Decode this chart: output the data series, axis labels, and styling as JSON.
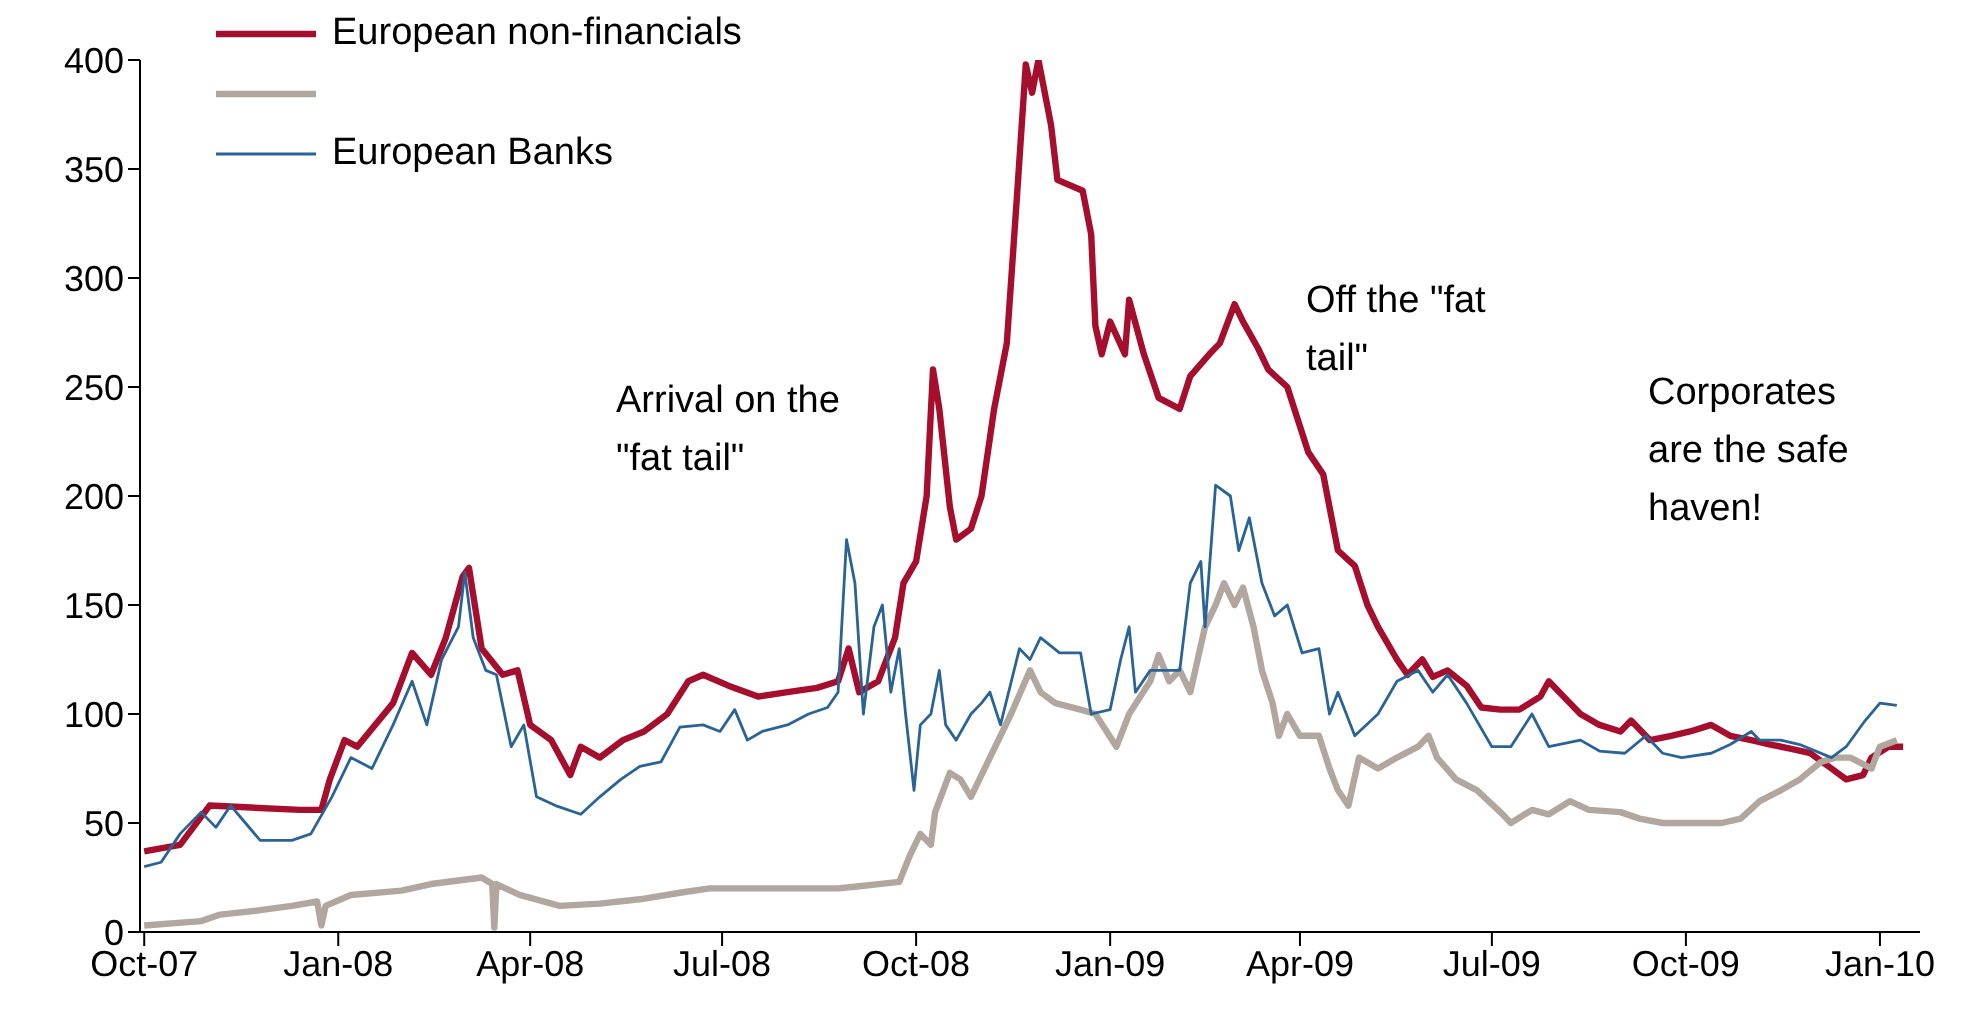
{
  "chart_data": {
    "type": "line",
    "legend": "top left",
    "grid": false,
    "marker": "none",
    "line_style": "solid",
    "xlim": [
      "2007-09-29",
      "2010-01-20"
    ],
    "xticks": [
      {
        "value": "2007-10-01",
        "label": "Oct-07"
      },
      {
        "value": "2008-01-01",
        "label": "Jan-08"
      },
      {
        "value": "2008-04-01",
        "label": "Apr-08"
      },
      {
        "value": "2008-07-01",
        "label": "Jul-08"
      },
      {
        "value": "2008-10-01",
        "label": "Oct-08"
      },
      {
        "value": "2009-01-01",
        "label": "Jan-09"
      },
      {
        "value": "2009-04-01",
        "label": "Apr-09"
      },
      {
        "value": "2009-07-01",
        "label": "Jul-09"
      },
      {
        "value": "2009-10-01",
        "label": "Oct-09"
      },
      {
        "value": "2010-01-01",
        "label": "Jan-10"
      }
    ],
    "ylim": [
      0,
      400
    ],
    "yticks": [
      0,
      50,
      100,
      150,
      200,
      250,
      300,
      350,
      400
    ],
    "annotations": [
      "Arrival on the \"fat tail\"",
      "Off the \"fat tail\"",
      "Corporates are the safe haven!"
    ],
    "series": [
      {
        "name": "European non-financials",
        "color": "#a50f2d",
        "x": [
          "2007-10-01",
          "2007-10-18",
          "2007-11-01",
          "2007-12-14",
          "2007-12-24",
          "2007-12-28",
          "2008-01-04",
          "2008-01-10",
          "2008-01-27",
          "2008-02-05",
          "2008-02-14",
          "2008-02-21",
          "2008-02-29",
          "2008-03-03",
          "2008-03-09",
          "2008-03-19",
          "2008-03-26",
          "2008-04-01",
          "2008-04-11",
          "2008-04-20",
          "2008-04-25",
          "2008-05-04",
          "2008-05-15",
          "2008-05-25",
          "2008-06-05",
          "2008-06-15",
          "2008-06-22",
          "2008-07-04",
          "2008-07-18",
          "2008-08-01",
          "2008-08-15",
          "2008-08-25",
          "2008-08-30",
          "2008-09-04",
          "2008-09-13",
          "2008-09-21",
          "2008-09-25",
          "2008-10-01",
          "2008-10-06",
          "2008-10-09",
          "2008-10-12",
          "2008-10-17",
          "2008-10-20",
          "2008-10-27",
          "2008-11-01",
          "2008-11-07",
          "2008-11-13",
          "2008-11-18",
          "2008-11-22",
          "2008-11-25",
          "2008-11-28",
          "2008-12-04",
          "2008-12-07",
          "2008-12-19",
          "2008-12-23",
          "2008-12-25",
          "2008-12-28",
          "2009-01-01",
          "2009-01-08",
          "2009-01-10",
          "2009-01-17",
          "2009-01-24",
          "2009-02-03",
          "2009-02-08",
          "2009-02-17",
          "2009-02-22",
          "2009-03-01",
          "2009-03-05",
          "2009-03-12",
          "2009-03-17",
          "2009-03-26",
          "2009-04-05",
          "2009-04-12",
          "2009-04-19",
          "2009-04-27",
          "2009-05-03",
          "2009-05-08",
          "2009-05-17",
          "2009-05-22",
          "2009-05-29",
          "2009-06-03",
          "2009-06-10",
          "2009-06-19",
          "2009-06-26",
          "2009-07-05",
          "2009-07-14",
          "2009-07-24",
          "2009-07-28",
          "2009-08-07",
          "2009-08-12",
          "2009-08-21",
          "2009-08-31",
          "2009-09-05",
          "2009-09-14",
          "2009-09-24",
          "2009-10-03",
          "2009-10-13",
          "2009-10-22",
          "2009-11-01",
          "2009-11-10",
          "2009-11-20",
          "2009-11-29",
          "2009-12-09",
          "2009-12-16",
          "2009-12-24",
          "2009-12-28",
          "2010-01-05",
          "2010-01-12"
        ],
        "values": [
          37,
          40,
          58,
          56,
          56,
          70,
          88,
          85,
          105,
          128,
          118,
          135,
          163,
          167,
          130,
          118,
          120,
          95,
          88,
          72,
          85,
          80,
          88,
          92,
          100,
          115,
          118,
          113,
          108,
          110,
          112,
          115,
          130,
          110,
          115,
          135,
          160,
          170,
          200,
          258,
          240,
          195,
          180,
          185,
          200,
          240,
          270,
          340,
          398,
          385,
          400,
          370,
          345,
          340,
          320,
          278,
          265,
          280,
          265,
          290,
          265,
          245,
          240,
          255,
          265,
          270,
          288,
          280,
          268,
          258,
          250,
          220,
          210,
          175,
          168,
          150,
          140,
          125,
          118,
          125,
          117,
          120,
          113,
          103,
          102,
          102,
          108,
          115,
          105,
          100,
          95,
          92,
          97,
          88,
          90,
          92,
          95,
          90,
          88,
          86,
          84,
          82,
          75,
          70,
          72,
          80,
          85,
          85
        ]
      },
      {
        "color": "#b1a79f",
        "x": [
          "2007-10-01",
          "2007-10-28",
          "2007-11-06",
          "2007-11-25",
          "2007-12-10",
          "2007-12-22",
          "2007-12-24",
          "2007-12-26",
          "2008-01-07",
          "2008-01-31",
          "2008-02-14",
          "2008-03-09",
          "2008-03-14",
          "2008-03-15",
          "2008-03-16",
          "2008-03-27",
          "2008-04-15",
          "2008-05-04",
          "2008-05-23",
          "2008-06-11",
          "2008-06-25",
          "2008-08-25",
          "2008-09-04",
          "2008-09-23",
          "2008-09-28",
          "2008-10-03",
          "2008-10-08",
          "2008-10-10",
          "2008-10-17",
          "2008-10-22",
          "2008-10-27",
          "2008-11-05",
          "2008-11-15",
          "2008-11-24",
          "2008-11-29",
          "2008-12-06",
          "2008-12-18",
          "2008-12-25",
          "2009-01-04",
          "2009-01-10",
          "2009-01-20",
          "2009-01-24",
          "2009-01-29",
          "2009-02-03",
          "2009-02-08",
          "2009-02-15",
          "2009-02-20",
          "2009-02-24",
          "2009-03-01",
          "2009-03-05",
          "2009-03-10",
          "2009-03-14",
          "2009-03-19",
          "2009-03-22",
          "2009-03-26",
          "2009-04-01",
          "2009-04-10",
          "2009-04-15",
          "2009-04-19",
          "2009-04-24",
          "2009-04-29",
          "2009-05-08",
          "2009-05-17",
          "2009-05-27",
          "2009-06-01",
          "2009-06-05",
          "2009-06-14",
          "2009-06-24",
          "2009-07-05",
          "2009-07-10",
          "2009-07-20",
          "2009-07-28",
          "2009-08-07",
          "2009-08-16",
          "2009-08-31",
          "2009-09-09",
          "2009-09-20",
          "2009-10-18",
          "2009-10-27",
          "2009-11-05",
          "2009-11-15",
          "2009-11-24",
          "2009-12-04",
          "2009-12-11",
          "2009-12-18",
          "2009-12-28",
          "2010-01-01",
          "2010-01-09"
        ],
        "values": [
          3,
          5,
          8,
          10,
          12,
          14,
          3,
          12,
          17,
          19,
          22,
          25,
          22,
          2,
          22,
          17,
          12,
          13,
          15,
          18,
          20,
          20,
          21,
          23,
          35,
          45,
          40,
          55,
          73,
          70,
          62,
          80,
          100,
          120,
          110,
          105,
          102,
          100,
          85,
          100,
          115,
          127,
          115,
          120,
          110,
          140,
          150,
          160,
          150,
          158,
          140,
          120,
          105,
          90,
          100,
          90,
          90,
          75,
          65,
          58,
          80,
          75,
          80,
          85,
          90,
          80,
          70,
          65,
          55,
          50,
          56,
          54,
          60,
          56,
          55,
          52,
          50,
          50,
          52,
          60,
          65,
          70,
          78,
          80,
          80,
          75,
          85,
          88
        ]
      },
      {
        "name": "European Banks",
        "color": "#2a6496",
        "x": [
          "2007-10-01",
          "2007-10-09",
          "2007-10-18",
          "2007-10-28",
          "2007-11-04",
          "2007-11-11",
          "2007-11-18",
          "2007-11-25",
          "2007-12-10",
          "2007-12-19",
          "2007-12-29",
          "2008-01-07",
          "2008-01-17",
          "2008-01-27",
          "2008-02-05",
          "2008-02-12",
          "2008-02-19",
          "2008-02-27",
          "2008-03-01",
          "2008-03-05",
          "2008-03-11",
          "2008-03-16",
          "2008-03-23",
          "2008-03-29",
          "2008-04-04",
          "2008-04-13",
          "2008-04-25",
          "2008-05-04",
          "2008-05-14",
          "2008-05-23",
          "2008-06-02",
          "2008-06-11",
          "2008-06-22",
          "2008-06-30",
          "2008-07-07",
          "2008-07-13",
          "2008-07-20",
          "2008-08-01",
          "2008-08-11",
          "2008-08-20",
          "2008-08-25",
          "2008-08-29",
          "2008-09-02",
          "2008-09-06",
          "2008-09-11",
          "2008-09-15",
          "2008-09-19",
          "2008-09-23",
          "2008-09-26",
          "2008-09-30",
          "2008-10-03",
          "2008-10-08",
          "2008-10-12",
          "2008-10-15",
          "2008-10-20",
          "2008-10-27",
          "2008-11-01",
          "2008-11-05",
          "2008-11-10",
          "2008-11-19",
          "2008-11-24",
          "2008-11-29",
          "2008-12-08",
          "2008-12-18",
          "2008-12-23",
          "2009-01-01",
          "2009-01-06",
          "2009-01-10",
          "2009-01-13",
          "2009-01-20",
          "2009-02-03",
          "2009-02-08",
          "2009-02-13",
          "2009-02-15",
          "2009-02-20",
          "2009-02-27",
          "2009-03-03",
          "2009-03-08",
          "2009-03-14",
          "2009-03-20",
          "2009-03-26",
          "2009-04-02",
          "2009-04-10",
          "2009-04-15",
          "2009-04-19",
          "2009-04-27",
          "2009-05-08",
          "2009-05-17",
          "2009-05-27",
          "2009-06-03",
          "2009-06-10",
          "2009-06-19",
          "2009-07-01",
          "2009-07-10",
          "2009-07-20",
          "2009-07-28",
          "2009-08-12",
          "2009-08-21",
          "2009-09-02",
          "2009-09-12",
          "2009-09-20",
          "2009-09-29",
          "2009-10-13",
          "2009-10-22",
          "2009-11-01",
          "2009-11-05",
          "2009-11-15",
          "2009-11-24",
          "2009-12-09",
          "2009-12-16",
          "2009-12-25",
          "2010-01-01",
          "2010-01-09"
        ],
        "values": [
          30,
          32,
          45,
          55,
          48,
          58,
          50,
          42,
          42,
          45,
          62,
          80,
          75,
          95,
          115,
          95,
          125,
          140,
          165,
          135,
          120,
          118,
          85,
          95,
          62,
          58,
          54,
          62,
          70,
          76,
          78,
          94,
          95,
          92,
          102,
          88,
          92,
          95,
          100,
          103,
          110,
          180,
          160,
          100,
          140,
          150,
          110,
          130,
          100,
          65,
          95,
          100,
          120,
          95,
          88,
          100,
          105,
          110,
          95,
          130,
          125,
          135,
          128,
          128,
          100,
          102,
          125,
          140,
          110,
          120,
          120,
          160,
          170,
          140,
          205,
          200,
          175,
          190,
          160,
          145,
          150,
          128,
          130,
          100,
          110,
          90,
          100,
          115,
          120,
          110,
          118,
          105,
          85,
          85,
          100,
          85,
          88,
          83,
          82,
          90,
          82,
          80,
          82,
          86,
          92,
          88,
          88,
          86,
          80,
          85,
          97,
          105,
          104
        ]
      }
    ]
  }
}
